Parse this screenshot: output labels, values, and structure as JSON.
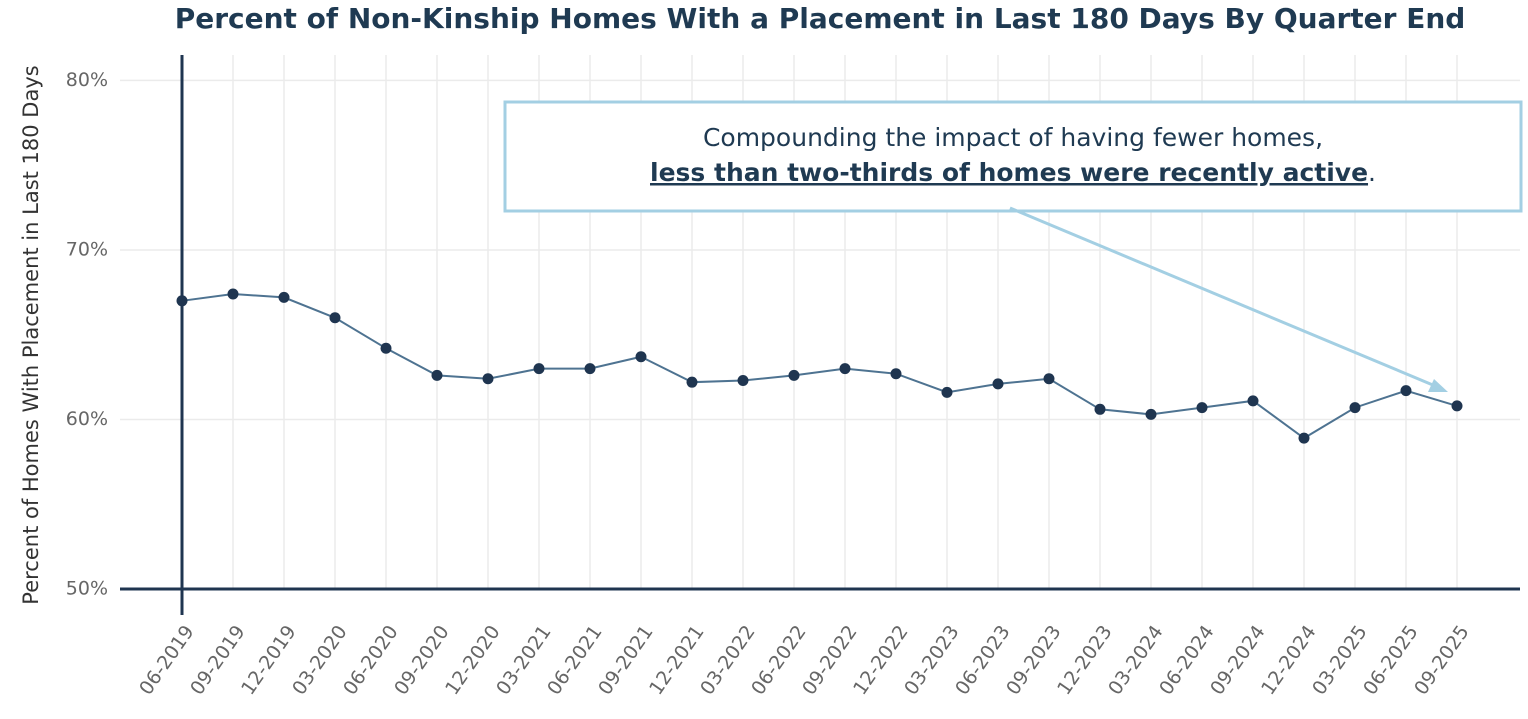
{
  "chart_data": {
    "type": "line",
    "title": "Percent of Non-Kinship Homes With a Placement in Last 180 Days By Quarter End",
    "y_label": "Percent of Homes With Placement in Last 180 Days",
    "categories": [
      "06-2019",
      "09-2019",
      "12-2019",
      "03-2020",
      "06-2020",
      "09-2020",
      "12-2020",
      "03-2021",
      "06-2021",
      "09-2021",
      "12-2021",
      "03-2022",
      "06-2022",
      "09-2022",
      "12-2022",
      "03-2023",
      "06-2023",
      "09-2023",
      "12-2023",
      "03-2024",
      "06-2024",
      "09-2024",
      "12-2024",
      "03-2025",
      "06-2025",
      "09-2025"
    ],
    "values": [
      67.0,
      67.4,
      67.2,
      66.0,
      64.2,
      62.6,
      62.4,
      63.0,
      63.0,
      63.7,
      62.2,
      62.3,
      62.6,
      63.0,
      62.7,
      61.6,
      62.1,
      62.4,
      60.6,
      60.3,
      60.7,
      61.1,
      58.9,
      60.7,
      61.7,
      60.8
    ],
    "color": "#4e7391",
    "marker_color": "#1f3550",
    "ylim": [
      50,
      81.5
    ],
    "yticks": [
      {
        "value": 50,
        "label": "50%"
      },
      {
        "value": 60,
        "label": "60%"
      },
      {
        "value": 70,
        "label": "70%"
      },
      {
        "value": 80,
        "label": "80%"
      }
    ],
    "grid": true,
    "annotation": {
      "line1": "Compounding the impact of having fewer homes,",
      "line2_emphasis": "less than two-thirds of homes were recently active",
      "line2_end": "."
    }
  }
}
